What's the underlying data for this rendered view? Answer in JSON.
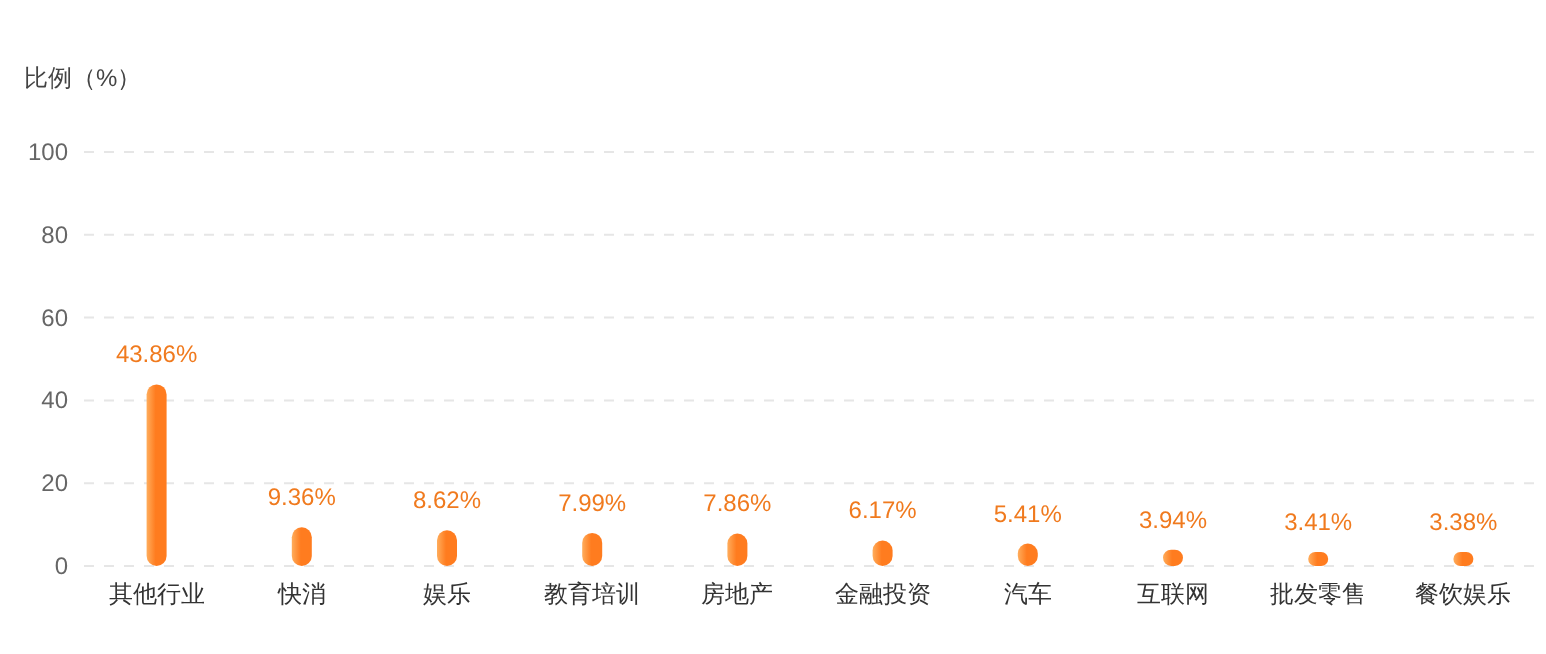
{
  "chart_data": {
    "type": "bar",
    "ylabel": "比例（%）",
    "categories": [
      "其他行业",
      "快消",
      "娱乐",
      "教育培训",
      "房地产",
      "金融投资",
      "汽车",
      "互联网",
      "批发零售",
      "餐饮娱乐"
    ],
    "values": [
      43.86,
      9.36,
      8.62,
      7.99,
      7.86,
      6.17,
      5.41,
      3.94,
      3.41,
      3.38
    ],
    "value_labels": [
      "43.86%",
      "9.36%",
      "8.62%",
      "7.99%",
      "7.86%",
      "6.17%",
      "5.41%",
      "3.94%",
      "3.41%",
      "3.38%"
    ],
    "color": "#ff7c1f",
    "ylim": [
      0,
      100
    ],
    "yticks": [
      0,
      20,
      40,
      60,
      80,
      100
    ],
    "grid": "y"
  }
}
